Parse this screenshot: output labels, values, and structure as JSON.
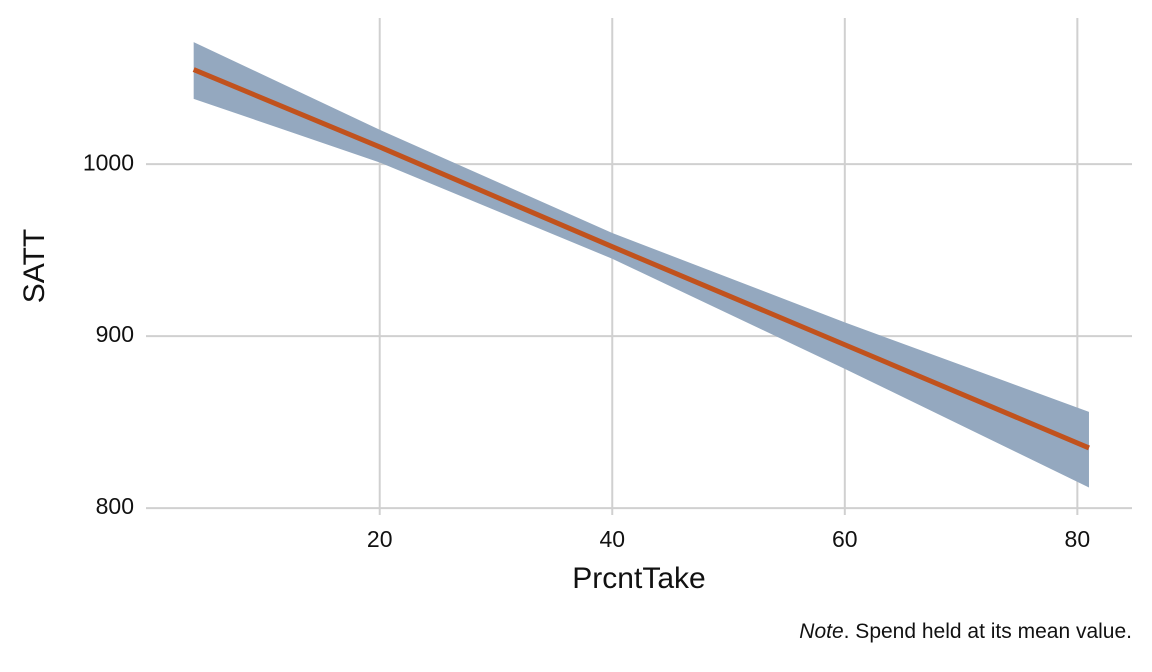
{
  "chart_data": {
    "type": "line",
    "xlabel": "PrcntTake",
    "ylabel": "SATT",
    "note_label": "Note",
    "note_text": ". Spend held at its mean value.",
    "x": [
      4,
      20,
      40,
      60,
      81
    ],
    "values": [
      1055,
      1010,
      952,
      895,
      835
    ],
    "lower": [
      1038,
      1001,
      945,
      881,
      812
    ],
    "upper": [
      1071,
      1020,
      960,
      908,
      856
    ],
    "color": "#c1521d",
    "band_color": "#94a8bf",
    "xlim": [
      -0.1,
      84.7
    ],
    "xticks": [
      20,
      40,
      60,
      80
    ],
    "ylim": [
      796,
      1085
    ],
    "yticks": [
      800,
      900,
      1000
    ],
    "grid": true
  }
}
